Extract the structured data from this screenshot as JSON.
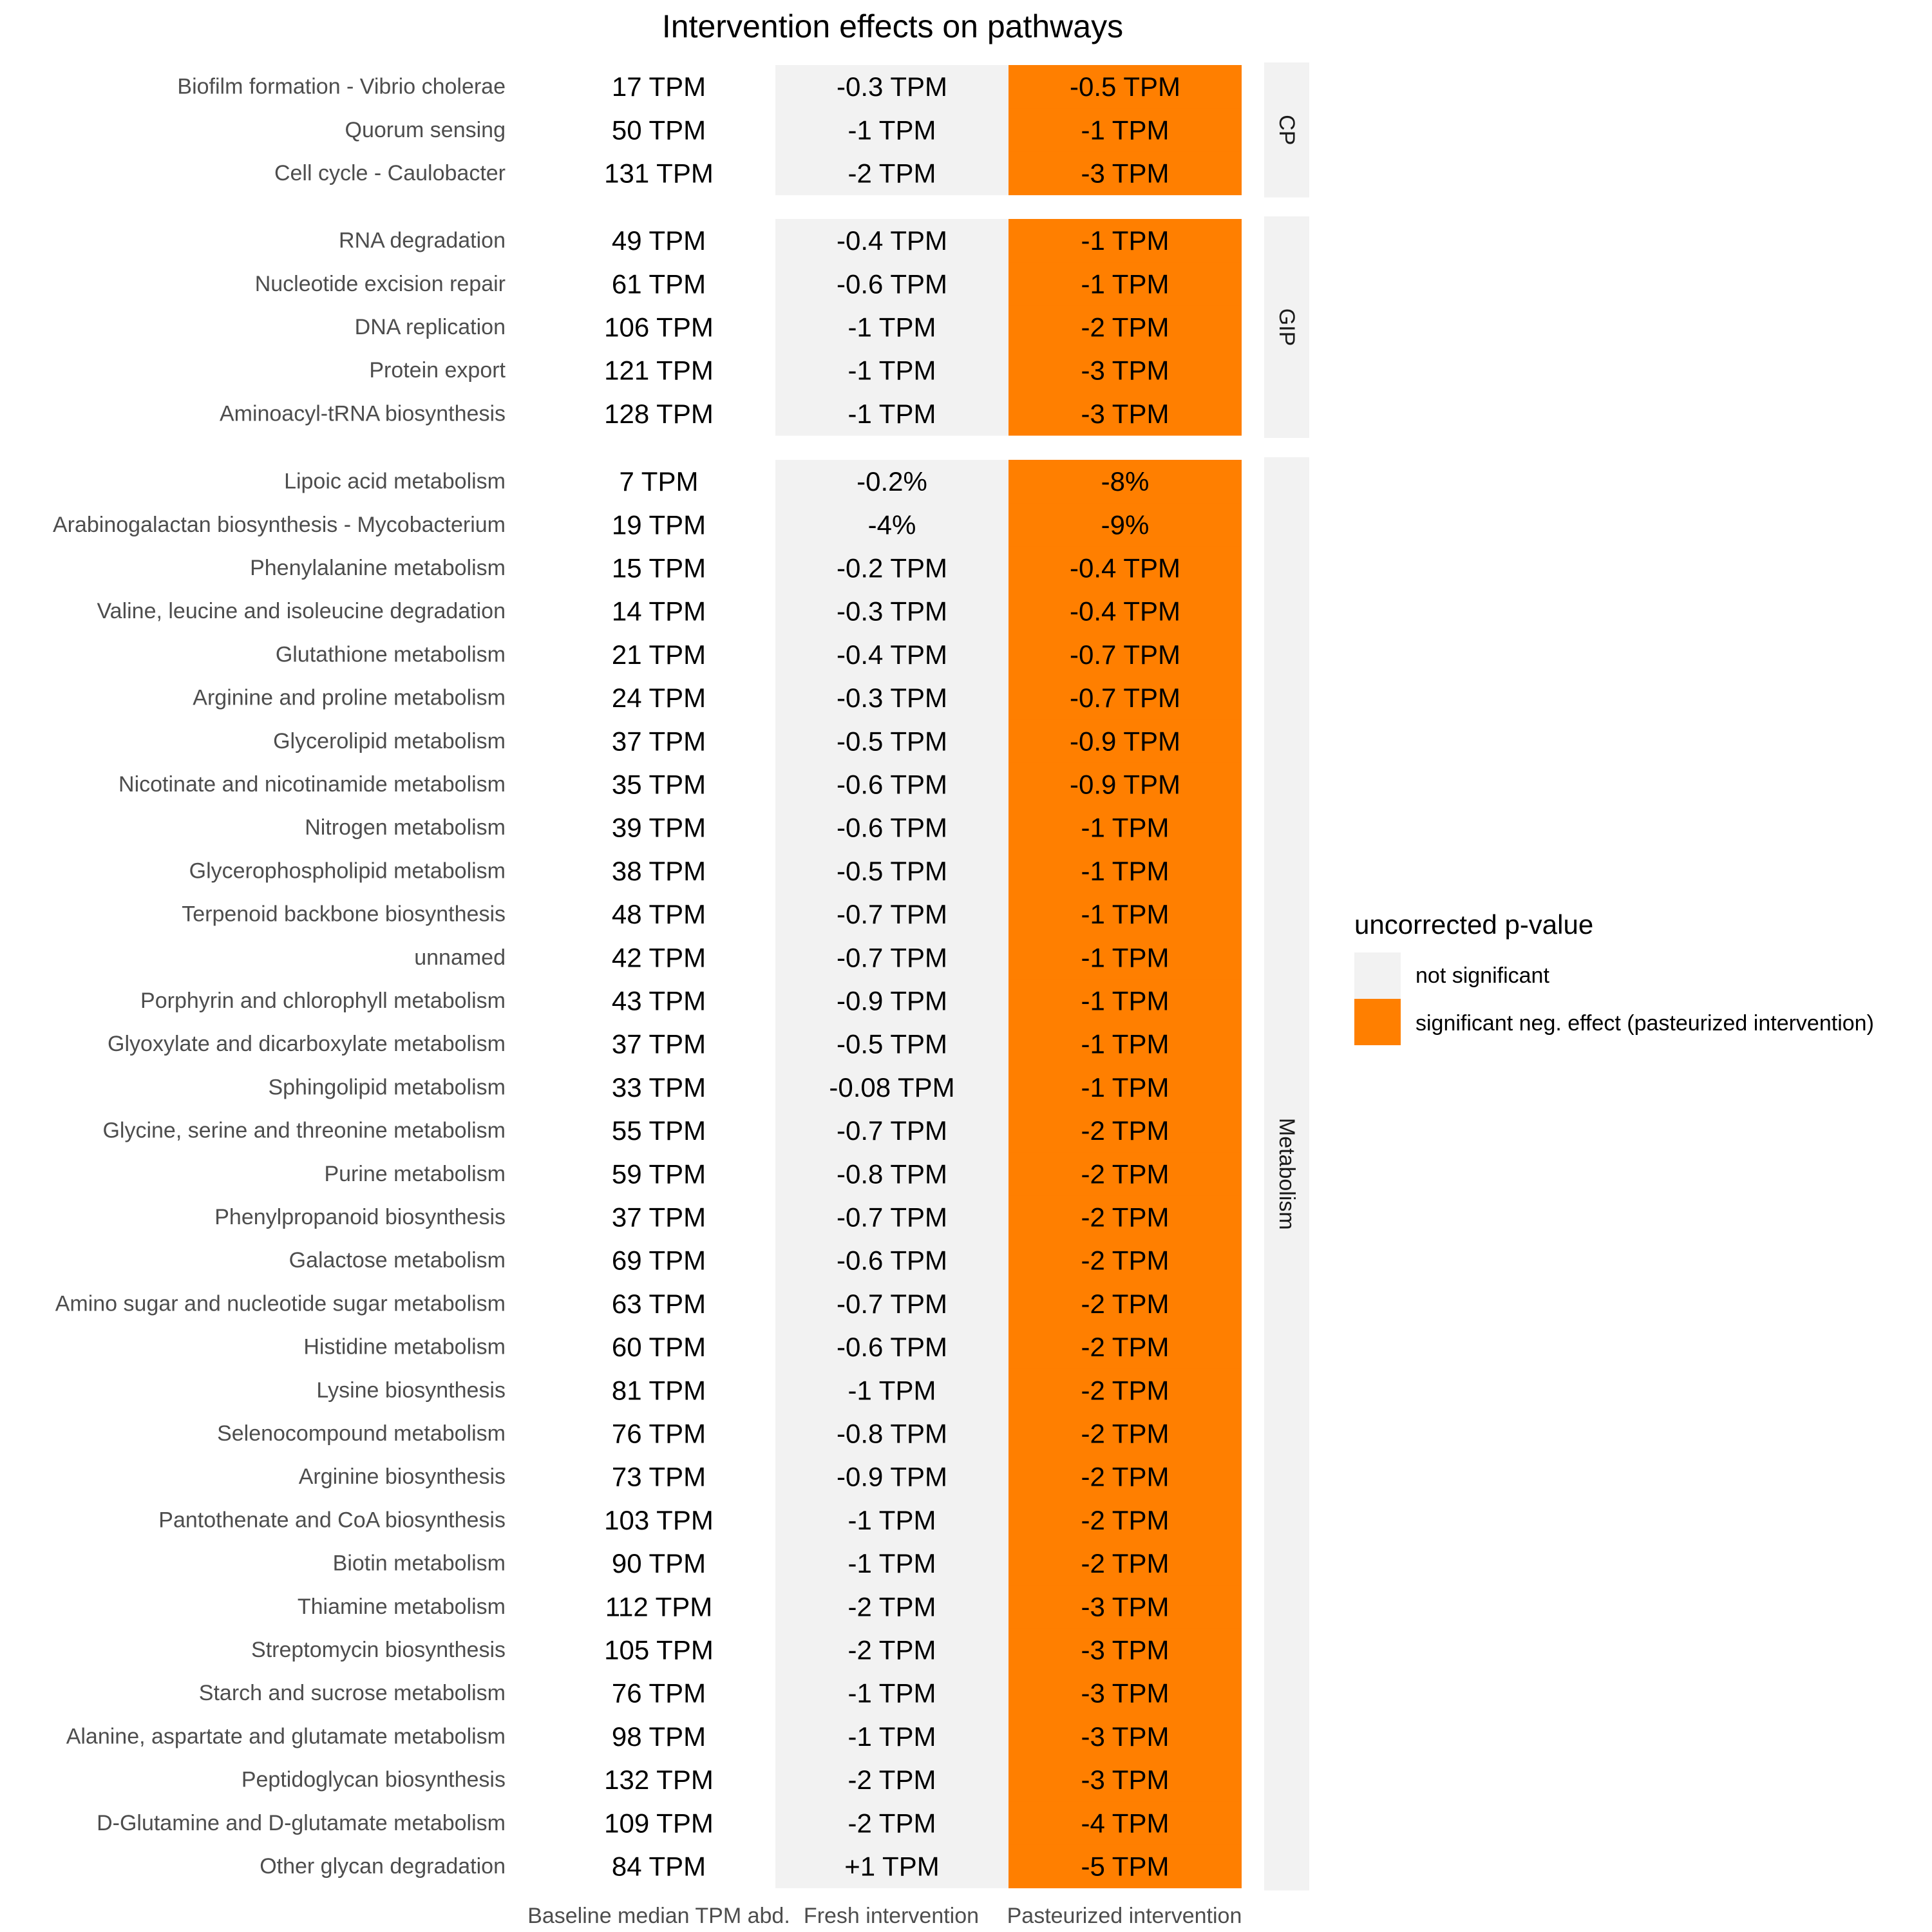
{
  "colors": {
    "not_significant": "#F2F2F2",
    "significant_neg": "#FF7F00",
    "strip_bg": "#F2F2F2",
    "row_label": "#4D4D4D"
  },
  "chart_data": {
    "type": "table",
    "title": "Intervention effects on pathways",
    "columns": [
      "Baseline median TPM abd.",
      "Fresh intervention",
      "Pasteurized intervention"
    ],
    "legend": {
      "title": "uncorrected p-value",
      "entries": [
        {
          "key": "not_significant",
          "label": "not significant"
        },
        {
          "key": "significant_neg",
          "label": "significant neg. effect (pasteurized intervention)"
        }
      ],
      "placement": "right"
    },
    "groups": [
      {
        "name": "CP",
        "rows": [
          {
            "pathway": "Biofilm formation - Vibrio cholerae",
            "baseline": "17 TPM",
            "fresh": "-0.3 TPM",
            "fresh_sig": "not_significant",
            "pasteurized": "-0.5 TPM",
            "pasteurized_sig": "significant_neg"
          },
          {
            "pathway": "Quorum sensing",
            "baseline": "50 TPM",
            "fresh": "-1 TPM",
            "fresh_sig": "not_significant",
            "pasteurized": "-1 TPM",
            "pasteurized_sig": "significant_neg"
          },
          {
            "pathway": "Cell cycle - Caulobacter",
            "baseline": "131 TPM",
            "fresh": "-2 TPM",
            "fresh_sig": "not_significant",
            "pasteurized": "-3 TPM",
            "pasteurized_sig": "significant_neg"
          }
        ]
      },
      {
        "name": "GIP",
        "rows": [
          {
            "pathway": "RNA degradation",
            "baseline": "49 TPM",
            "fresh": "-0.4 TPM",
            "fresh_sig": "not_significant",
            "pasteurized": "-1 TPM",
            "pasteurized_sig": "significant_neg"
          },
          {
            "pathway": "Nucleotide excision repair",
            "baseline": "61 TPM",
            "fresh": "-0.6 TPM",
            "fresh_sig": "not_significant",
            "pasteurized": "-1 TPM",
            "pasteurized_sig": "significant_neg"
          },
          {
            "pathway": "DNA replication",
            "baseline": "106 TPM",
            "fresh": "-1 TPM",
            "fresh_sig": "not_significant",
            "pasteurized": "-2 TPM",
            "pasteurized_sig": "significant_neg"
          },
          {
            "pathway": "Protein export",
            "baseline": "121 TPM",
            "fresh": "-1 TPM",
            "fresh_sig": "not_significant",
            "pasteurized": "-3 TPM",
            "pasteurized_sig": "significant_neg"
          },
          {
            "pathway": "Aminoacyl-tRNA biosynthesis",
            "baseline": "128 TPM",
            "fresh": "-1 TPM",
            "fresh_sig": "not_significant",
            "pasteurized": "-3 TPM",
            "pasteurized_sig": "significant_neg"
          }
        ]
      },
      {
        "name": "Metabolism",
        "rows": [
          {
            "pathway": "Lipoic acid metabolism",
            "baseline": "7 TPM",
            "fresh": "-0.2%",
            "fresh_sig": "not_significant",
            "pasteurized": "-8%",
            "pasteurized_sig": "significant_neg"
          },
          {
            "pathway": "Arabinogalactan biosynthesis - Mycobacterium",
            "baseline": "19 TPM",
            "fresh": "-4%",
            "fresh_sig": "not_significant",
            "pasteurized": "-9%",
            "pasteurized_sig": "significant_neg"
          },
          {
            "pathway": "Phenylalanine metabolism",
            "baseline": "15 TPM",
            "fresh": "-0.2 TPM",
            "fresh_sig": "not_significant",
            "pasteurized": "-0.4 TPM",
            "pasteurized_sig": "significant_neg"
          },
          {
            "pathway": "Valine, leucine and isoleucine degradation",
            "baseline": "14 TPM",
            "fresh": "-0.3 TPM",
            "fresh_sig": "not_significant",
            "pasteurized": "-0.4 TPM",
            "pasteurized_sig": "significant_neg"
          },
          {
            "pathway": "Glutathione metabolism",
            "baseline": "21 TPM",
            "fresh": "-0.4 TPM",
            "fresh_sig": "not_significant",
            "pasteurized": "-0.7 TPM",
            "pasteurized_sig": "significant_neg"
          },
          {
            "pathway": "Arginine and proline metabolism",
            "baseline": "24 TPM",
            "fresh": "-0.3 TPM",
            "fresh_sig": "not_significant",
            "pasteurized": "-0.7 TPM",
            "pasteurized_sig": "significant_neg"
          },
          {
            "pathway": "Glycerolipid metabolism",
            "baseline": "37 TPM",
            "fresh": "-0.5 TPM",
            "fresh_sig": "not_significant",
            "pasteurized": "-0.9 TPM",
            "pasteurized_sig": "significant_neg"
          },
          {
            "pathway": "Nicotinate and nicotinamide metabolism",
            "baseline": "35 TPM",
            "fresh": "-0.6 TPM",
            "fresh_sig": "not_significant",
            "pasteurized": "-0.9 TPM",
            "pasteurized_sig": "significant_neg"
          },
          {
            "pathway": "Nitrogen metabolism",
            "baseline": "39 TPM",
            "fresh": "-0.6 TPM",
            "fresh_sig": "not_significant",
            "pasteurized": "-1 TPM",
            "pasteurized_sig": "significant_neg"
          },
          {
            "pathway": "Glycerophospholipid metabolism",
            "baseline": "38 TPM",
            "fresh": "-0.5 TPM",
            "fresh_sig": "not_significant",
            "pasteurized": "-1 TPM",
            "pasteurized_sig": "significant_neg"
          },
          {
            "pathway": "Terpenoid backbone biosynthesis",
            "baseline": "48 TPM",
            "fresh": "-0.7 TPM",
            "fresh_sig": "not_significant",
            "pasteurized": "-1 TPM",
            "pasteurized_sig": "significant_neg"
          },
          {
            "pathway": "unnamed",
            "baseline": "42 TPM",
            "fresh": "-0.7 TPM",
            "fresh_sig": "not_significant",
            "pasteurized": "-1 TPM",
            "pasteurized_sig": "significant_neg"
          },
          {
            "pathway": "Porphyrin and chlorophyll metabolism",
            "baseline": "43 TPM",
            "fresh": "-0.9 TPM",
            "fresh_sig": "not_significant",
            "pasteurized": "-1 TPM",
            "pasteurized_sig": "significant_neg"
          },
          {
            "pathway": "Glyoxylate and dicarboxylate metabolism",
            "baseline": "37 TPM",
            "fresh": "-0.5 TPM",
            "fresh_sig": "not_significant",
            "pasteurized": "-1 TPM",
            "pasteurized_sig": "significant_neg"
          },
          {
            "pathway": "Sphingolipid metabolism",
            "baseline": "33 TPM",
            "fresh": "-0.08 TPM",
            "fresh_sig": "not_significant",
            "pasteurized": "-1 TPM",
            "pasteurized_sig": "significant_neg"
          },
          {
            "pathway": "Glycine, serine and threonine metabolism",
            "baseline": "55 TPM",
            "fresh": "-0.7 TPM",
            "fresh_sig": "not_significant",
            "pasteurized": "-2 TPM",
            "pasteurized_sig": "significant_neg"
          },
          {
            "pathway": "Purine metabolism",
            "baseline": "59 TPM",
            "fresh": "-0.8 TPM",
            "fresh_sig": "not_significant",
            "pasteurized": "-2 TPM",
            "pasteurized_sig": "significant_neg"
          },
          {
            "pathway": "Phenylpropanoid biosynthesis",
            "baseline": "37 TPM",
            "fresh": "-0.7 TPM",
            "fresh_sig": "not_significant",
            "pasteurized": "-2 TPM",
            "pasteurized_sig": "significant_neg"
          },
          {
            "pathway": "Galactose metabolism",
            "baseline": "69 TPM",
            "fresh": "-0.6 TPM",
            "fresh_sig": "not_significant",
            "pasteurized": "-2 TPM",
            "pasteurized_sig": "significant_neg"
          },
          {
            "pathway": "Amino sugar and nucleotide sugar metabolism",
            "baseline": "63 TPM",
            "fresh": "-0.7 TPM",
            "fresh_sig": "not_significant",
            "pasteurized": "-2 TPM",
            "pasteurized_sig": "significant_neg"
          },
          {
            "pathway": "Histidine metabolism",
            "baseline": "60 TPM",
            "fresh": "-0.6 TPM",
            "fresh_sig": "not_significant",
            "pasteurized": "-2 TPM",
            "pasteurized_sig": "significant_neg"
          },
          {
            "pathway": "Lysine biosynthesis",
            "baseline": "81 TPM",
            "fresh": "-1 TPM",
            "fresh_sig": "not_significant",
            "pasteurized": "-2 TPM",
            "pasteurized_sig": "significant_neg"
          },
          {
            "pathway": "Selenocompound metabolism",
            "baseline": "76 TPM",
            "fresh": "-0.8 TPM",
            "fresh_sig": "not_significant",
            "pasteurized": "-2 TPM",
            "pasteurized_sig": "significant_neg"
          },
          {
            "pathway": "Arginine biosynthesis",
            "baseline": "73 TPM",
            "fresh": "-0.9 TPM",
            "fresh_sig": "not_significant",
            "pasteurized": "-2 TPM",
            "pasteurized_sig": "significant_neg"
          },
          {
            "pathway": "Pantothenate and CoA biosynthesis",
            "baseline": "103 TPM",
            "fresh": "-1 TPM",
            "fresh_sig": "not_significant",
            "pasteurized": "-2 TPM",
            "pasteurized_sig": "significant_neg"
          },
          {
            "pathway": "Biotin metabolism",
            "baseline": "90 TPM",
            "fresh": "-1 TPM",
            "fresh_sig": "not_significant",
            "pasteurized": "-2 TPM",
            "pasteurized_sig": "significant_neg"
          },
          {
            "pathway": "Thiamine metabolism",
            "baseline": "112 TPM",
            "fresh": "-2 TPM",
            "fresh_sig": "not_significant",
            "pasteurized": "-3 TPM",
            "pasteurized_sig": "significant_neg"
          },
          {
            "pathway": "Streptomycin biosynthesis",
            "baseline": "105 TPM",
            "fresh": "-2 TPM",
            "fresh_sig": "not_significant",
            "pasteurized": "-3 TPM",
            "pasteurized_sig": "significant_neg"
          },
          {
            "pathway": "Starch and sucrose metabolism",
            "baseline": "76 TPM",
            "fresh": "-1 TPM",
            "fresh_sig": "not_significant",
            "pasteurized": "-3 TPM",
            "pasteurized_sig": "significant_neg"
          },
          {
            "pathway": "Alanine, aspartate and glutamate metabolism",
            "baseline": "98 TPM",
            "fresh": "-1 TPM",
            "fresh_sig": "not_significant",
            "pasteurized": "-3 TPM",
            "pasteurized_sig": "significant_neg"
          },
          {
            "pathway": "Peptidoglycan biosynthesis",
            "baseline": "132 TPM",
            "fresh": "-2 TPM",
            "fresh_sig": "not_significant",
            "pasteurized": "-3 TPM",
            "pasteurized_sig": "significant_neg"
          },
          {
            "pathway": "D-Glutamine and D-glutamate metabolism",
            "baseline": "109 TPM",
            "fresh": "-2 TPM",
            "fresh_sig": "not_significant",
            "pasteurized": "-4 TPM",
            "pasteurized_sig": "significant_neg"
          },
          {
            "pathway": "Other glycan degradation",
            "baseline": "84 TPM",
            "fresh": "+1 TPM",
            "fresh_sig": "not_significant",
            "pasteurized": "-5 TPM",
            "pasteurized_sig": "significant_neg"
          }
        ]
      }
    ]
  }
}
